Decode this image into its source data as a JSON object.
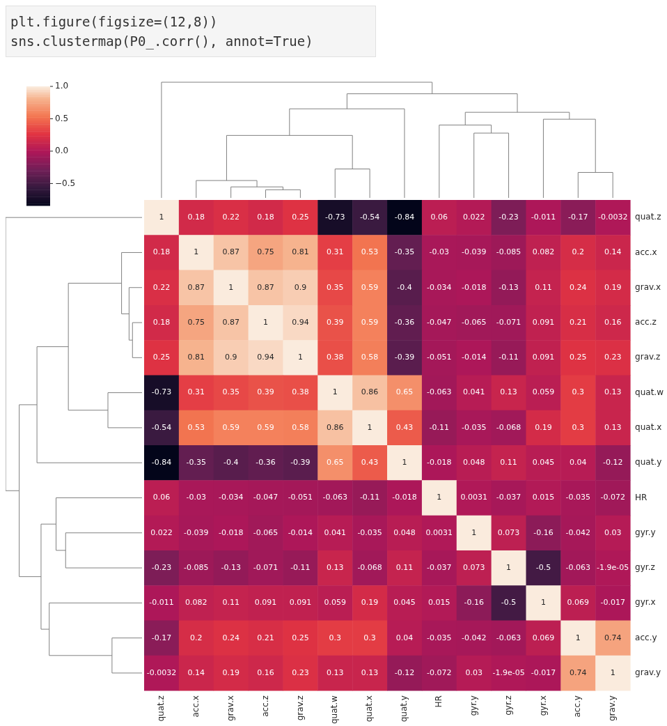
{
  "chart_data": {
    "type": "heatmap",
    "categories": [
      "quat.z",
      "acc.x",
      "grav.x",
      "acc.z",
      "grav.z",
      "quat.w",
      "quat.x",
      "quat.y",
      "HR",
      "gyr.y",
      "gyr.z",
      "gyr.x",
      "acc.y",
      "grav.y"
    ],
    "y_categories": [
      "quat.z",
      "acc.x",
      "grav.x",
      "acc.z",
      "grav.z",
      "quat.w",
      "quat.x",
      "quat.y",
      "HR",
      "gyr.y",
      "gyr.z",
      "gyr.x",
      "acc.y",
      "grav.y"
    ],
    "cells": [
      [
        1,
        0.18,
        0.22,
        0.18,
        0.25,
        -0.73,
        -0.54,
        -0.84,
        0.06,
        0.022,
        -0.23,
        -0.011,
        -0.17,
        -0.0032
      ],
      [
        0.18,
        1,
        0.87,
        0.75,
        0.81,
        0.31,
        0.53,
        -0.35,
        -0.03,
        -0.039,
        -0.085,
        0.082,
        0.2,
        0.14
      ],
      [
        0.22,
        0.87,
        1,
        0.87,
        0.9,
        0.35,
        0.59,
        -0.4,
        -0.034,
        -0.018,
        -0.13,
        0.11,
        0.24,
        0.19
      ],
      [
        0.18,
        0.75,
        0.87,
        1,
        0.94,
        0.39,
        0.59,
        -0.36,
        -0.047,
        -0.065,
        -0.071,
        0.091,
        0.21,
        0.16
      ],
      [
        0.25,
        0.81,
        0.9,
        0.94,
        1,
        0.38,
        0.58,
        -0.39,
        -0.051,
        -0.014,
        -0.11,
        0.091,
        0.25,
        0.23
      ],
      [
        -0.73,
        0.31,
        0.35,
        0.39,
        0.38,
        1,
        0.86,
        0.65,
        -0.063,
        0.041,
        0.13,
        0.059,
        0.3,
        0.13
      ],
      [
        -0.54,
        0.53,
        0.59,
        0.59,
        0.58,
        0.86,
        1,
        0.43,
        -0.11,
        -0.035,
        -0.068,
        0.19,
        0.3,
        0.13
      ],
      [
        -0.84,
        -0.35,
        -0.4,
        -0.36,
        -0.39,
        0.65,
        0.43,
        1,
        -0.018,
        0.048,
        0.11,
        0.045,
        0.04,
        -0.12
      ],
      [
        0.06,
        -0.03,
        -0.034,
        -0.047,
        -0.051,
        -0.063,
        -0.11,
        -0.018,
        1,
        0.0031,
        -0.037,
        0.015,
        -0.035,
        -0.072
      ],
      [
        0.022,
        -0.039,
        -0.018,
        -0.065,
        -0.014,
        0.041,
        -0.035,
        0.048,
        0.0031,
        1,
        0.073,
        -0.16,
        -0.042,
        0.03
      ],
      [
        -0.23,
        -0.085,
        -0.13,
        -0.071,
        -0.11,
        0.13,
        -0.068,
        0.11,
        -0.037,
        0.073,
        1,
        -0.5,
        -0.063,
        -1.9e-05
      ],
      [
        -0.011,
        0.082,
        0.11,
        0.091,
        0.091,
        0.059,
        0.19,
        0.045,
        0.015,
        -0.16,
        -0.5,
        1,
        0.069,
        -0.017
      ],
      [
        -0.17,
        0.2,
        0.24,
        0.21,
        0.25,
        0.3,
        0.3,
        0.04,
        -0.035,
        -0.042,
        -0.063,
        0.069,
        1,
        0.74
      ],
      [
        -0.0032,
        0.14,
        0.19,
        0.16,
        0.23,
        0.13,
        0.13,
        -0.12,
        -0.072,
        0.03,
        -1.9e-05,
        -0.017,
        0.74,
        1
      ]
    ],
    "cell_labels": [
      [
        "1",
        "0.18",
        "0.22",
        "0.18",
        "0.25",
        "-0.73",
        "-0.54",
        "-0.84",
        "0.06",
        "0.022",
        "-0.23",
        "-0.011",
        "-0.17",
        "-0.0032"
      ],
      [
        "0.18",
        "1",
        "0.87",
        "0.75",
        "0.81",
        "0.31",
        "0.53",
        "-0.35",
        "-0.03",
        "-0.039",
        "-0.085",
        "0.082",
        "0.2",
        "0.14"
      ],
      [
        "0.22",
        "0.87",
        "1",
        "0.87",
        "0.9",
        "0.35",
        "0.59",
        "-0.4",
        "-0.034",
        "-0.018",
        "-0.13",
        "0.11",
        "0.24",
        "0.19"
      ],
      [
        "0.18",
        "0.75",
        "0.87",
        "1",
        "0.94",
        "0.39",
        "0.59",
        "-0.36",
        "-0.047",
        "-0.065",
        "-0.071",
        "0.091",
        "0.21",
        "0.16"
      ],
      [
        "0.25",
        "0.81",
        "0.9",
        "0.94",
        "1",
        "0.38",
        "0.58",
        "-0.39",
        "-0.051",
        "-0.014",
        "-0.11",
        "0.091",
        "0.25",
        "0.23"
      ],
      [
        "-0.73",
        "0.31",
        "0.35",
        "0.39",
        "0.38",
        "1",
        "0.86",
        "0.65",
        "-0.063",
        "0.041",
        "0.13",
        "0.059",
        "0.3",
        "0.13"
      ],
      [
        "-0.54",
        "0.53",
        "0.59",
        "0.59",
        "0.58",
        "0.86",
        "1",
        "0.43",
        "-0.11",
        "-0.035",
        "-0.068",
        "0.19",
        "0.3",
        "0.13"
      ],
      [
        "-0.84",
        "-0.35",
        "-0.4",
        "-0.36",
        "-0.39",
        "0.65",
        "0.43",
        "1",
        "-0.018",
        "0.048",
        "0.11",
        "0.045",
        "0.04",
        "-0.12"
      ],
      [
        "0.06",
        "-0.03",
        "-0.034",
        "-0.047",
        "-0.051",
        "-0.063",
        "-0.11",
        "-0.018",
        "1",
        "0.0031",
        "-0.037",
        "0.015",
        "-0.035",
        "-0.072"
      ],
      [
        "0.022",
        "-0.039",
        "-0.018",
        "-0.065",
        "-0.014",
        "0.041",
        "-0.035",
        "0.048",
        "0.0031",
        "1",
        "0.073",
        "-0.16",
        "-0.042",
        "0.03"
      ],
      [
        "-0.23",
        "-0.085",
        "-0.13",
        "-0.071",
        "-0.11",
        "0.13",
        "-0.068",
        "0.11",
        "-0.037",
        "0.073",
        "1",
        "-0.5",
        "-0.063",
        "-1.9e-05"
      ],
      [
        "-0.011",
        "0.082",
        "0.11",
        "0.091",
        "0.091",
        "0.059",
        "0.19",
        "0.045",
        "0.015",
        "-0.16",
        "-0.5",
        "1",
        "0.069",
        "-0.017"
      ],
      [
        "-0.17",
        "0.2",
        "0.24",
        "0.21",
        "0.25",
        "0.3",
        "0.3",
        "0.04",
        "-0.035",
        "-0.042",
        "-0.063",
        "0.069",
        "1",
        "0.74"
      ],
      [
        "-0.0032",
        "0.14",
        "0.19",
        "0.16",
        "0.23",
        "0.13",
        "0.13",
        "-0.12",
        "-0.072",
        "0.03",
        "-1.9e-05",
        "-0.017",
        "0.74",
        "1"
      ]
    ],
    "clim": [
      -0.84,
      1
    ],
    "cticks": [
      {
        "value": -0.5,
        "label": "−0.5"
      },
      {
        "value": 0,
        "label": "0.0"
      },
      {
        "value": 0.5,
        "label": "0.5"
      },
      {
        "value": 1,
        "label": "1.0"
      }
    ],
    "annotations": [
      "plt.figure(figsize=(12,8))",
      "sns.clustermap(P0_.corr(), annot=True)"
    ]
  }
}
